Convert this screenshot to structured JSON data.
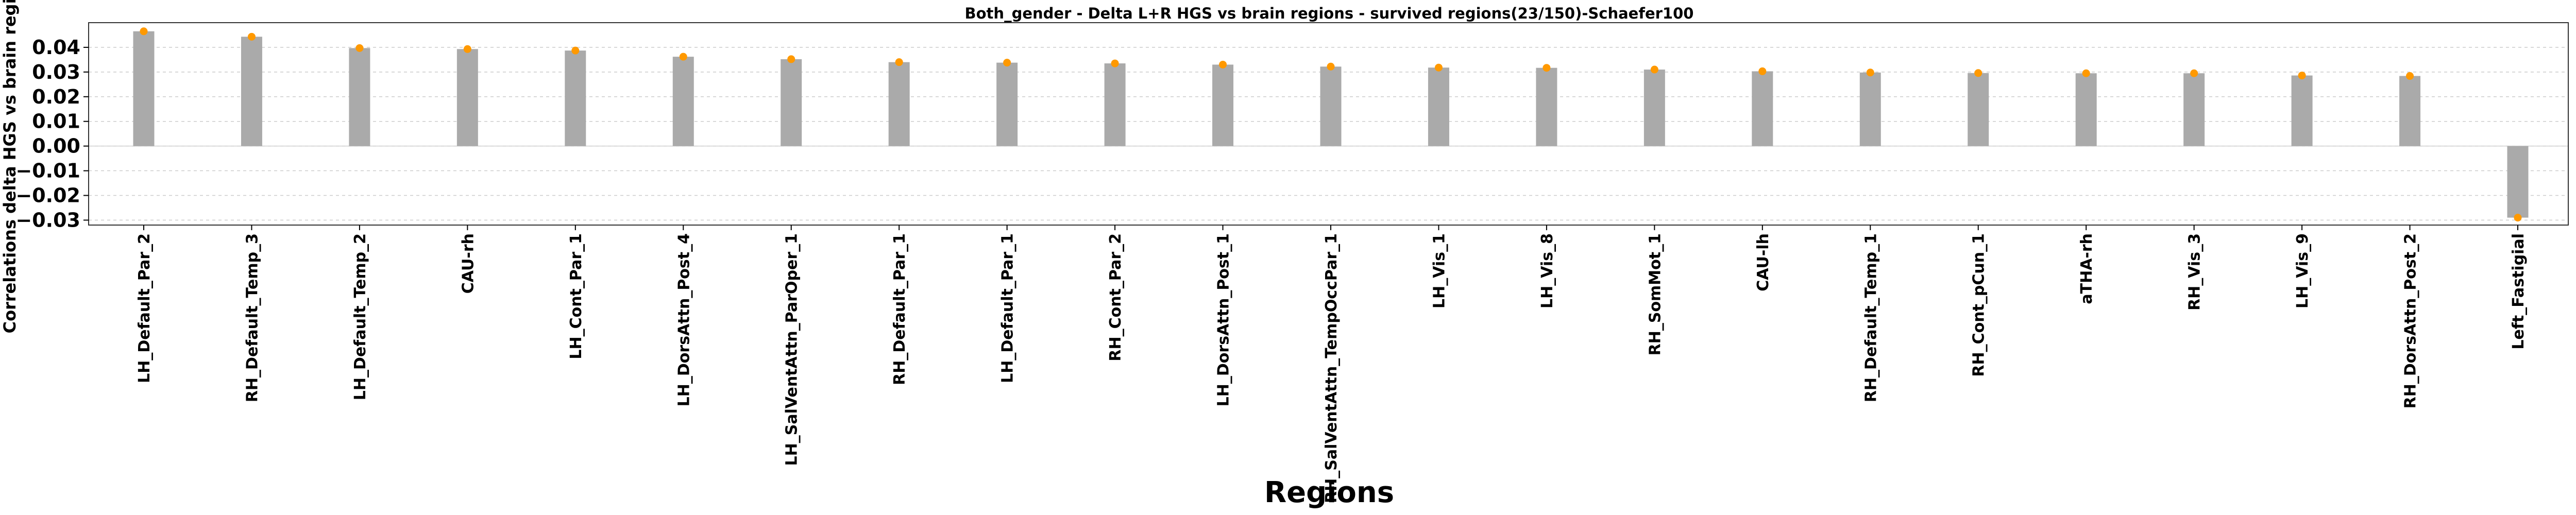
{
  "chart_data": {
    "type": "bar",
    "title": "Both_gender - Delta L+R HGS vs brain regions - survived regions(23/150)-Schaefer100",
    "xlabel": "Regions",
    "ylabel": "Correlations delta HGS vs brain regions",
    "ylim": [
      -0.032,
      0.05
    ],
    "yticks": [
      0.04,
      0.03,
      0.02,
      0.01,
      0.0,
      -0.01,
      -0.02,
      -0.03
    ],
    "ytick_labels": [
      "0.04",
      "0.03",
      "0.02",
      "0.01",
      "0.00",
      "−0.01",
      "−0.02",
      "−0.03"
    ],
    "grid": "horizontal dashed",
    "bar_color": "#aaaaaa",
    "marker_color": "#ff9900",
    "categories": [
      "LH_Default_Par_2",
      "RH_Default_Temp_3",
      "LH_Default_Temp_2",
      "CAU-rh",
      "LH_Cont_Par_1",
      "LH_DorsAttn_Post_4",
      "LH_SalVentAttn_ParOper_1",
      "RH_Default_Par_1",
      "LH_Default_Par_1",
      "RH_Cont_Par_2",
      "LH_DorsAttn_Post_1",
      "RH_SalVentAttn_TempOccPar_1",
      "LH_Vis_1",
      "LH_Vis_8",
      "RH_SomMot_1",
      "CAU-lh",
      "RH_Default_Temp_1",
      "RH_Cont_pCun_1",
      "aTHA-rh",
      "RH_Vis_3",
      "LH_Vis_9",
      "RH_DorsAttn_Post_2",
      "Left_Fastigial"
    ],
    "values": [
      0.0465,
      0.0443,
      0.0397,
      0.0393,
      0.0387,
      0.0362,
      0.0352,
      0.034,
      0.0338,
      0.0335,
      0.033,
      0.0322,
      0.0318,
      0.0317,
      0.031,
      0.0303,
      0.0298,
      0.0296,
      0.0295,
      0.0295,
      0.0286,
      0.0284,
      -0.029
    ]
  }
}
